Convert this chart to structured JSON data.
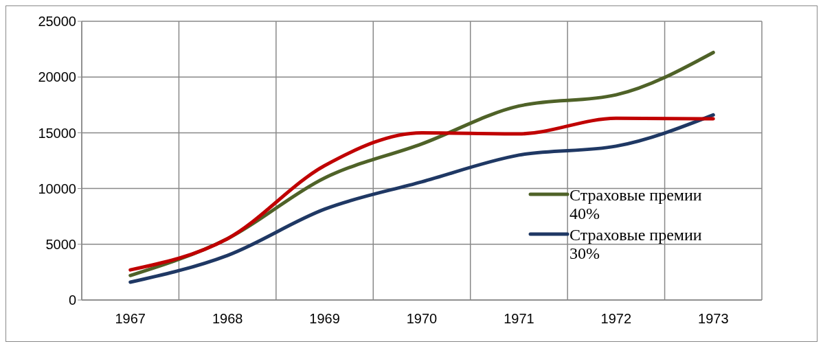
{
  "chart_data": {
    "type": "line",
    "categories": [
      "1967",
      "1968",
      "1969",
      "1970",
      "1971",
      "1972",
      "1973"
    ],
    "series": [
      {
        "name": "Страховые премии 40%",
        "color": "#4f6228",
        "values": [
          2200,
          5500,
          10950,
          14000,
          17400,
          18400,
          22200
        ]
      },
      {
        "name": "Страховые премии 30%",
        "color": "#1f3864",
        "values": [
          1600,
          4000,
          8150,
          10600,
          13000,
          13800,
          16600
        ]
      },
      {
        "color": "#c00000",
        "values": [
          2700,
          5500,
          12050,
          15000,
          14900,
          16300,
          16250
        ]
      }
    ],
    "ylim": [
      0,
      25000
    ],
    "yticks": [
      0,
      5000,
      10000,
      15000,
      20000,
      25000
    ],
    "grid": true,
    "legend": "right",
    "marker": "none",
    "line_style": "solid"
  }
}
